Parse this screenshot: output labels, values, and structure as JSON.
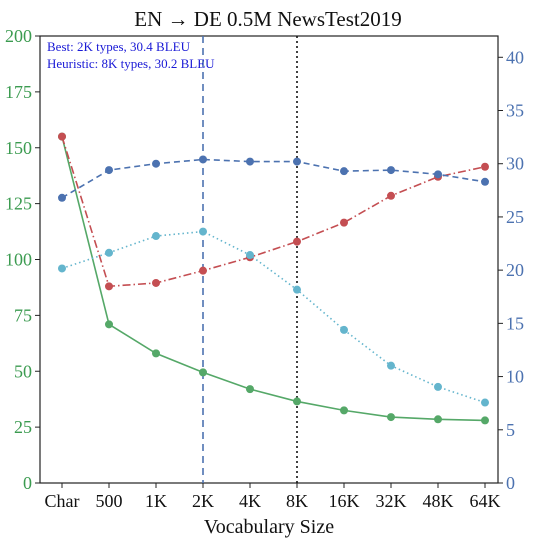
{
  "chart_data": {
    "type": "line",
    "title": "EN → DE 0.5M NewsTest2019",
    "xlabel": "Vocabulary Size",
    "ylabel_left": "",
    "ylabel_right": "",
    "categories": [
      "Char",
      "500",
      "1K",
      "2K",
      "4K",
      "8K",
      "16K",
      "32K",
      "48K",
      "64K"
    ],
    "ylim_left": [
      0,
      200
    ],
    "yticks_left": [
      0,
      25,
      50,
      75,
      100,
      125,
      150,
      175,
      200
    ],
    "ylim_right": [
      0,
      42
    ],
    "yticks_right": [
      0,
      5,
      10,
      15,
      20,
      25,
      30,
      35,
      40
    ],
    "left_axis_color": "#3b9b50",
    "right_axis_color": "#4c72b0",
    "annotations": [
      "Best: 2K types, 30.4 BLEU",
      "Heuristic: 8K types, 30.2 BLEU"
    ],
    "annotation_color": "#1a1ad6",
    "vertical_lines": [
      {
        "x": "2K",
        "style": "dashed",
        "color": "#4c72b0"
      },
      {
        "x": "8K",
        "style": "dotted",
        "color": "#111111"
      }
    ],
    "series": [
      {
        "axis": "left",
        "color": "#55a868",
        "style": "solid",
        "values": [
          155,
          71,
          58,
          49.5,
          42,
          36.5,
          32.5,
          29.5,
          28.5,
          28
        ]
      },
      {
        "axis": "left",
        "color": "#c44e52",
        "style": "dashdot",
        "values": [
          155,
          88,
          89.5,
          95,
          101,
          108,
          116.5,
          128.5,
          137,
          141.5
        ]
      },
      {
        "axis": "left",
        "color": "#64b5cd",
        "style": "dotted",
        "values": [
          96,
          103,
          110.5,
          112.5,
          102,
          86.5,
          68.5,
          52.5,
          43,
          36
        ]
      },
      {
        "axis": "right",
        "color": "#4c72b0",
        "style": "dashed",
        "values": [
          26.8,
          29.4,
          30.0,
          30.4,
          30.2,
          30.2,
          29.3,
          29.4,
          29.0,
          28.3
        ]
      }
    ]
  }
}
